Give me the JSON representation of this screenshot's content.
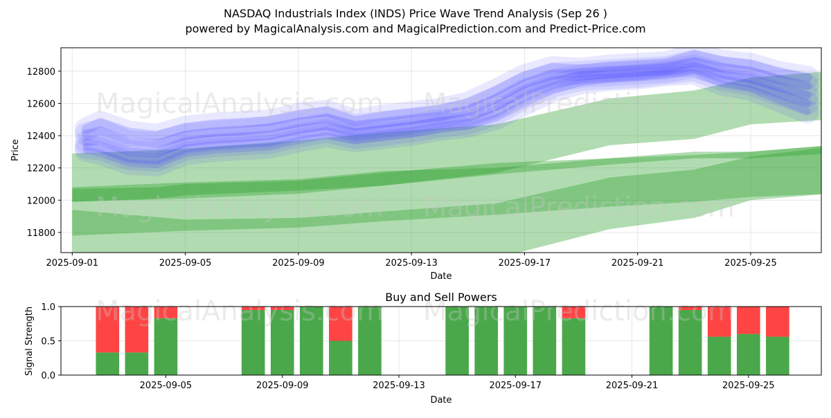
{
  "title_line1": "NASDAQ Industrials Index (INDS) Price Wave Trend Analysis (Sep 26 )",
  "title_line2": "powered by MagicalAnalysis.com and MagicalPrediction.com and Predict-Price.com",
  "watermarks": [
    "MagicalAnalysis.com",
    "MagicalPrediction.com"
  ],
  "colors": {
    "blue_wave": "#4a4aff",
    "green_band": "#2ca02c",
    "buy": "#4aa84a",
    "sell": "#ff4444",
    "grid": "#e6e6e6"
  },
  "chart_data": [
    {
      "type": "area",
      "title": "NASDAQ Industrials Index (INDS) Price Wave Trend Analysis (Sep 26 )",
      "xlabel": "Date",
      "ylabel": "Price",
      "xlim": [
        -0.4,
        26.5
      ],
      "ylim": [
        11675,
        12945
      ],
      "xticks": [
        {
          "x": 0,
          "label": "2025-09-01"
        },
        {
          "x": 4,
          "label": "2025-09-05"
        },
        {
          "x": 8,
          "label": "2025-09-09"
        },
        {
          "x": 12,
          "label": "2025-09-13"
        },
        {
          "x": 16,
          "label": "2025-09-17"
        },
        {
          "x": 20,
          "label": "2025-09-21"
        },
        {
          "x": 24,
          "label": "2025-09-25"
        }
      ],
      "yticks": [
        11800,
        12000,
        12200,
        12400,
        12600,
        12800
      ],
      "grid": true,
      "green_bands": [
        {
          "name": "outer-upper",
          "x": [
            0,
            3,
            4,
            8,
            11,
            15,
            19,
            22,
            24,
            26.8
          ],
          "upper": [
            12290,
            12310,
            12320,
            12370,
            12420,
            12470,
            12630,
            12680,
            12760,
            12800
          ],
          "lower": [
            11990,
            12010,
            12030,
            12060,
            12090,
            12170,
            12340,
            12380,
            12470,
            12500
          ]
        },
        {
          "name": "inner-upper",
          "x": [
            0,
            4,
            8,
            11,
            15,
            19,
            22,
            24,
            26.8
          ],
          "upper": [
            12080,
            12110,
            12130,
            12180,
            12200,
            12260,
            12280,
            12300,
            12340
          ],
          "lower": [
            11990,
            12010,
            12040,
            12090,
            12160,
            12220,
            12260,
            12260,
            12290
          ]
        },
        {
          "name": "outer-lower",
          "x": [
            0,
            3,
            4,
            8,
            11,
            15,
            19,
            22,
            24,
            26.8
          ],
          "upper": [
            12070,
            12080,
            12100,
            12120,
            12170,
            12230,
            12260,
            12300,
            12300,
            12340
          ],
          "lower": [
            11640,
            11640,
            11640,
            11640,
            11640,
            11640,
            11820,
            11890,
            12000,
            12040
          ]
        },
        {
          "name": "inner-lower",
          "x": [
            0,
            4,
            8,
            11,
            15,
            19,
            22,
            24,
            26.8
          ],
          "upper": [
            11940,
            11880,
            11890,
            11930,
            11980,
            12140,
            12190,
            12270,
            12330
          ],
          "lower": [
            11780,
            11810,
            11830,
            11870,
            11910,
            11960,
            11990,
            12020,
            12040
          ]
        }
      ],
      "series": [
        {
          "name": "wave-1",
          "x": [
            0.5,
            1,
            2,
            3,
            4,
            5,
            6,
            7,
            8,
            9,
            10,
            11,
            12,
            13,
            14,
            15,
            16,
            17,
            18,
            19,
            20,
            21,
            22,
            23,
            24,
            25,
            26
          ],
          "values": [
            12440,
            12480,
            12420,
            12400,
            12450,
            12470,
            12480,
            12490,
            12530,
            12550,
            12490,
            12520,
            12540,
            12560,
            12600,
            12680,
            12770,
            12820,
            12810,
            12830,
            12840,
            12850,
            12900,
            12860,
            12840,
            12790,
            12760
          ]
        },
        {
          "name": "wave-2",
          "x": [
            0.5,
            1,
            2,
            3,
            4,
            5,
            6,
            7,
            8,
            9,
            10,
            11,
            12,
            13,
            14,
            15,
            16,
            17,
            18,
            19,
            20,
            21,
            22,
            23,
            24,
            25,
            26
          ],
          "values": [
            12410,
            12430,
            12360,
            12350,
            12400,
            12420,
            12430,
            12450,
            12480,
            12510,
            12460,
            12480,
            12500,
            12520,
            12560,
            12630,
            12720,
            12780,
            12790,
            12800,
            12810,
            12820,
            12860,
            12820,
            12800,
            12750,
            12710
          ]
        },
        {
          "name": "wave-3",
          "x": [
            0.5,
            1,
            2,
            3,
            4,
            5,
            6,
            7,
            8,
            9,
            10,
            11,
            12,
            13,
            14,
            15,
            16,
            17,
            18,
            19,
            20,
            21,
            22,
            23,
            24,
            25,
            26
          ],
          "values": [
            12360,
            12370,
            12300,
            12290,
            12360,
            12380,
            12390,
            12400,
            12440,
            12460,
            12420,
            12440,
            12460,
            12490,
            12510,
            12580,
            12680,
            12740,
            12770,
            12780,
            12790,
            12800,
            12830,
            12780,
            12750,
            12700,
            12650
          ]
        },
        {
          "name": "wave-4",
          "x": [
            0.5,
            1,
            2,
            3,
            4,
            5,
            6,
            7,
            8,
            9,
            10,
            11,
            12,
            13,
            14,
            15,
            16,
            17,
            18,
            19,
            20,
            21,
            22,
            23,
            24,
            25,
            26
          ],
          "values": [
            12330,
            12320,
            12260,
            12250,
            12320,
            12340,
            12350,
            12360,
            12400,
            12430,
            12390,
            12410,
            12430,
            12460,
            12480,
            12540,
            12640,
            12710,
            12750,
            12760,
            12770,
            12790,
            12810,
            12750,
            12720,
            12660,
            12600
          ]
        },
        {
          "name": "wave-5",
          "x": [
            0.5,
            1,
            2,
            3,
            4,
            5,
            6,
            7,
            8,
            9,
            10,
            11,
            12,
            13,
            14,
            15,
            16,
            17,
            18,
            19,
            20,
            21,
            22,
            23,
            24,
            25,
            26
          ],
          "values": [
            12310,
            12290,
            12230,
            12220,
            12290,
            12310,
            12320,
            12330,
            12370,
            12400,
            12370,
            12390,
            12410,
            12440,
            12460,
            12510,
            12600,
            12680,
            12730,
            12750,
            12760,
            12780,
            12790,
            12720,
            12690,
            12620,
            12550
          ]
        }
      ]
    },
    {
      "type": "bar",
      "title": "Buy and Sell Powers",
      "xlabel": "Date",
      "ylabel": "Signal Strength",
      "xlim": [
        0.4,
        26.5
      ],
      "ylim": [
        0,
        1
      ],
      "xticks": [
        {
          "x": 4,
          "label": "2025-09-05"
        },
        {
          "x": 8,
          "label": "2025-09-09"
        },
        {
          "x": 12,
          "label": "2025-09-13"
        },
        {
          "x": 16,
          "label": "2025-09-17"
        },
        {
          "x": 20,
          "label": "2025-09-21"
        },
        {
          "x": 24,
          "label": "2025-09-25"
        }
      ],
      "yticks": [
        0.0,
        0.5,
        1.0
      ],
      "ytick_labels": [
        "0.0",
        "0.5",
        "1.0"
      ],
      "grid": true,
      "bars": [
        {
          "x": 2,
          "buy": 0.33,
          "sell": 0.67
        },
        {
          "x": 3,
          "buy": 0.33,
          "sell": 0.67
        },
        {
          "x": 4,
          "buy": 0.83,
          "sell": 0.17
        },
        {
          "x": 7,
          "buy": 0.95,
          "sell": 0.05
        },
        {
          "x": 8,
          "buy": 0.95,
          "sell": 0.05
        },
        {
          "x": 9,
          "buy": 1.0,
          "sell": 0.0
        },
        {
          "x": 10,
          "buy": 0.5,
          "sell": 0.5
        },
        {
          "x": 11,
          "buy": 1.0,
          "sell": 0.0
        },
        {
          "x": 14,
          "buy": 1.0,
          "sell": 0.0
        },
        {
          "x": 15,
          "buy": 1.0,
          "sell": 0.0
        },
        {
          "x": 16,
          "buy": 1.0,
          "sell": 0.0
        },
        {
          "x": 17,
          "buy": 1.0,
          "sell": 0.0
        },
        {
          "x": 18,
          "buy": 0.83,
          "sell": 0.17
        },
        {
          "x": 21,
          "buy": 1.0,
          "sell": 0.0
        },
        {
          "x": 22,
          "buy": 0.95,
          "sell": 0.05
        },
        {
          "x": 23,
          "buy": 0.56,
          "sell": 0.44
        },
        {
          "x": 24,
          "buy": 0.6,
          "sell": 0.4
        },
        {
          "x": 25,
          "buy": 0.56,
          "sell": 0.44
        }
      ]
    }
  ]
}
